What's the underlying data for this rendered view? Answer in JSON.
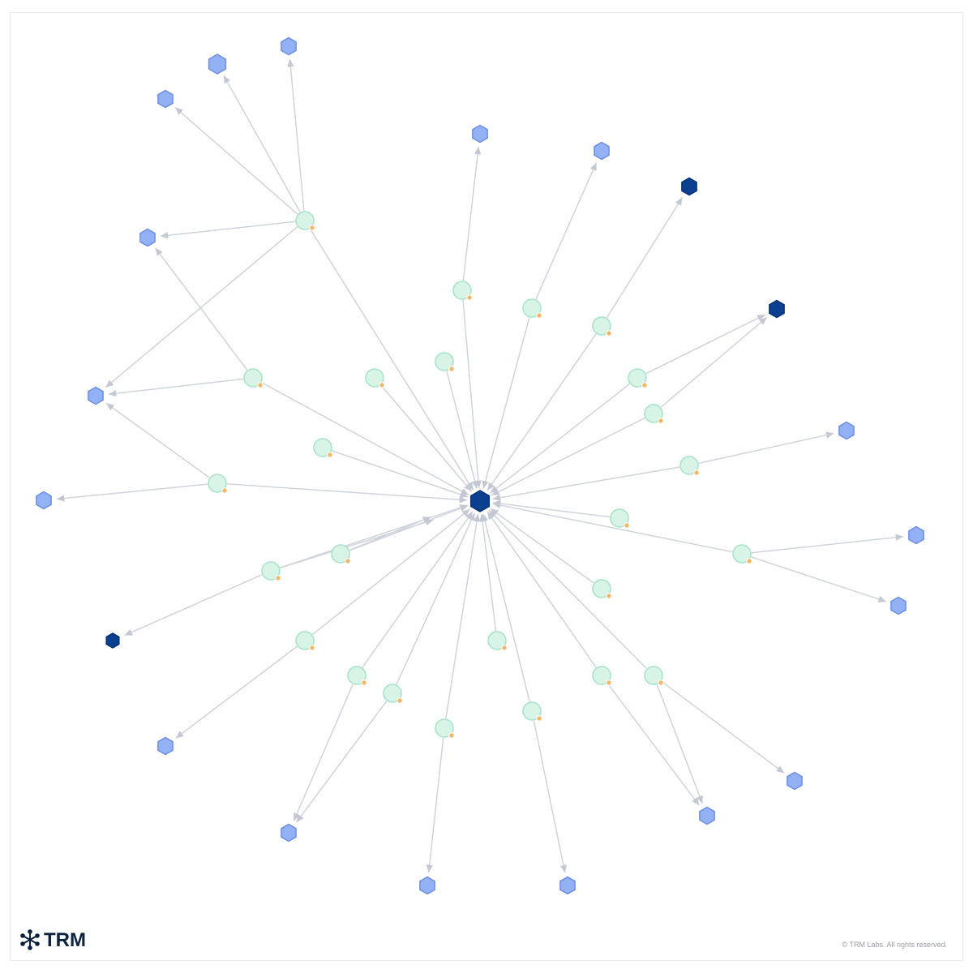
{
  "logo": {
    "text": "TRM"
  },
  "footer": {
    "copyright": "© TRM Labs. All rights reserved."
  }
}
